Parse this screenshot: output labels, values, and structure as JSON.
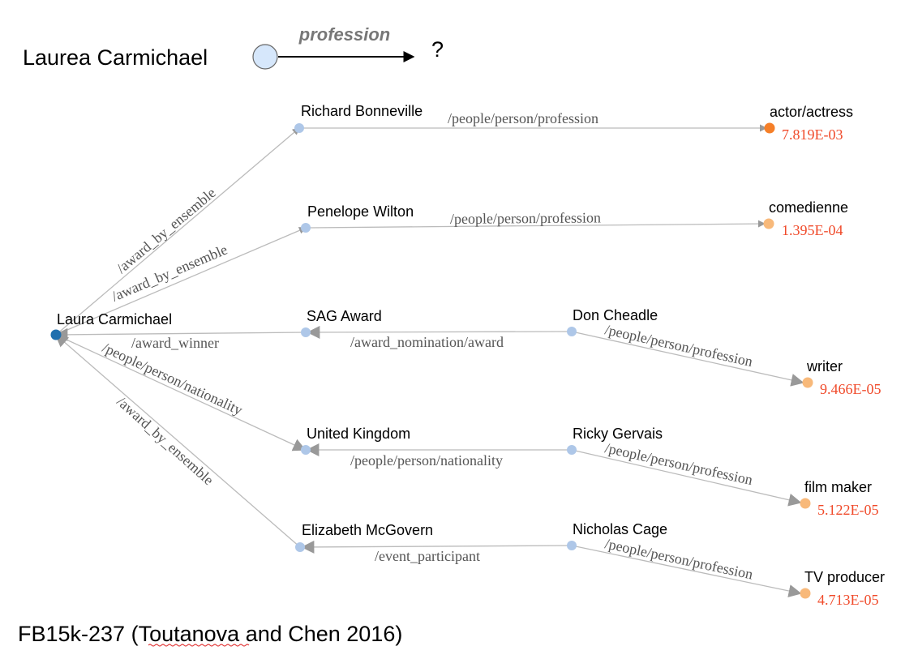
{
  "query": {
    "entity": "Laurea Carmichael",
    "relation": "profession",
    "target": "?"
  },
  "nodes": {
    "laura": "Laura Carmichael",
    "richard": "Richard Bonneville",
    "penelope": "Penelope Wilton",
    "sag": "SAG Award",
    "uk": "United Kingdom",
    "elizabeth": "Elizabeth McGovern",
    "don": "Don Cheadle",
    "ricky": "Ricky Gervais",
    "nicholas": "Nicholas Cage",
    "actor": "actor/actress",
    "comedienne": "comedienne",
    "writer": "writer",
    "filmmaker": "film maker",
    "tvproducer": "TV producer"
  },
  "edges": {
    "laura_richard": "/award_by_ensemble",
    "laura_penelope": "/award_by_ensemble",
    "sag_laura": "/award_winner",
    "laura_uk": "/people/person/nationality",
    "laura_elizabeth": "/award_by_ensemble",
    "richard_actor": "/people/person/profession",
    "penelope_comedienne": "/people/person/profession",
    "don_sag": "/award_nomination/award",
    "ricky_uk": "/people/person/nationality",
    "nicholas_elizabeth": "/event_participant",
    "don_writer": "/people/person/profession",
    "ricky_filmmaker": "/people/person/profession",
    "nicholas_tvproducer": "/people/person/profession"
  },
  "scores": {
    "actor": "7.819E-03",
    "comedienne": "1.395E-04",
    "writer": "9.466E-05",
    "filmmaker": "5.122E-05",
    "tvproducer": "4.713E-05"
  },
  "colors": {
    "source_node": "#1f6fae",
    "intermediate_node": "#aec7e8",
    "top_answer_node": "#f57f28",
    "answer_node": "#f8b97a",
    "score_text": "#f04a2a",
    "edge": "#bbbbbb",
    "edge_label": "#555555"
  },
  "caption": {
    "prefix": "FB15k-237 (",
    "cite_author": "Toutanova",
    "suffix": " and Chen 2016)"
  }
}
